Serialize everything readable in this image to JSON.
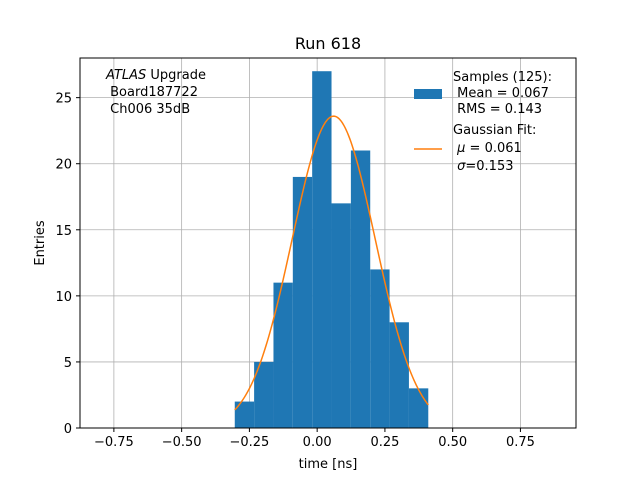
{
  "chart_data": {
    "type": "bar",
    "title": "Run 618",
    "xlabel": "time [ns]",
    "ylabel": "Entries",
    "xlim": [
      -0.875,
      0.955
    ],
    "ylim": [
      0,
      28
    ],
    "grid": true,
    "x_ticks": [
      -0.75,
      -0.5,
      -0.25,
      0.0,
      0.25,
      0.5,
      0.75
    ],
    "x_tick_labels": [
      "−0.75",
      "−0.50",
      "−0.25",
      "0.00",
      "0.25",
      "0.50",
      "0.75"
    ],
    "y_ticks": [
      0,
      5,
      10,
      15,
      20,
      25
    ],
    "y_tick_labels": [
      "0",
      "5",
      "10",
      "15",
      "20",
      "25"
    ],
    "bin_width": 0.0714,
    "bins": [
      {
        "x0": -0.304,
        "count": 2
      },
      {
        "x0": -0.2326,
        "count": 5
      },
      {
        "x0": -0.1612,
        "count": 11
      },
      {
        "x0": -0.0898,
        "count": 19
      },
      {
        "x0": -0.0184,
        "count": 27
      },
      {
        "x0": 0.053,
        "count": 17
      },
      {
        "x0": 0.1244,
        "count": 21
      },
      {
        "x0": 0.1958,
        "count": 12
      },
      {
        "x0": 0.2672,
        "count": 8
      },
      {
        "x0": 0.3386,
        "count": 3
      }
    ],
    "histogram_color": "#1f77b4",
    "fit": {
      "type": "gaussian",
      "amplitude": 23.6,
      "mu": 0.061,
      "sigma": 0.153,
      "x_range": [
        -0.304,
        0.41
      ],
      "color": "#ff7f0e"
    },
    "annotation": {
      "italic": "ATLAS",
      "line1_rest": " Upgrade",
      "line2": " Board187722",
      "line3": " Ch006 35dB"
    },
    "legend": {
      "position": "top-right",
      "samples_title": "Samples (125):",
      "samples_mean": " Mean = 0.067",
      "samples_rms": " RMS = 0.143",
      "fit_title": "Gaussian Fit:",
      "fit_mu_symbol": "μ",
      "fit_mu_value": " = 0.061",
      "fit_sigma_symbol": "σ",
      "fit_sigma_value": "=0.153"
    }
  }
}
